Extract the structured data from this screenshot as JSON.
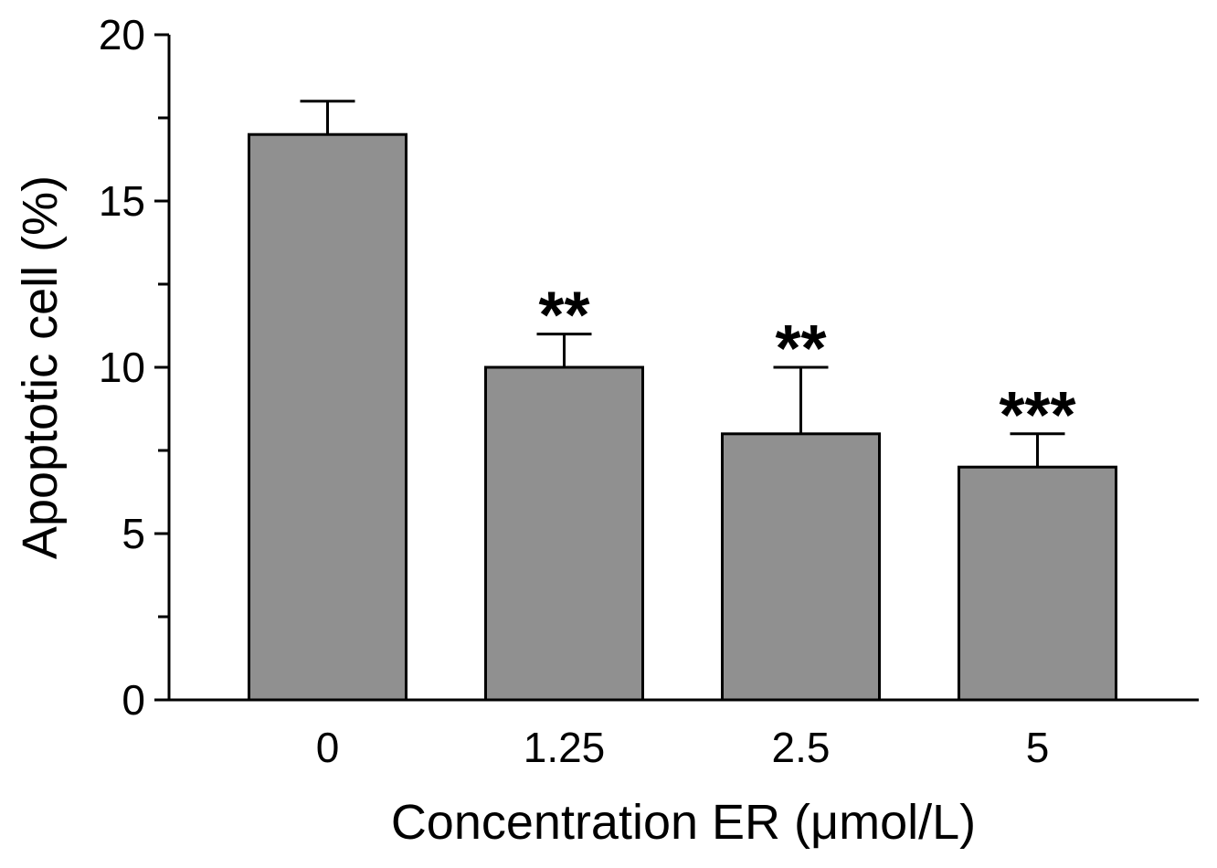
{
  "chart_data": {
    "type": "bar",
    "title": "",
    "xlabel": "Concentration ER (μmol/L)",
    "ylabel": "Apoptotic cell (%)",
    "categories": [
      "0",
      "1.25",
      "2.5",
      "5"
    ],
    "values": [
      17,
      10,
      8,
      7
    ],
    "errors": [
      1,
      1,
      2,
      1
    ],
    "significance": [
      "",
      "**",
      "**",
      "***"
    ],
    "ylim": [
      0,
      20
    ],
    "yticks": [
      0,
      5,
      10,
      15,
      20
    ],
    "yticks_minor": [
      2.5,
      7.5,
      12.5,
      17.5
    ],
    "ytick_labels": [
      "0",
      "5",
      "10",
      "15",
      "20"
    ],
    "grid": false,
    "bar_color": "#909090",
    "edge_color": "#000000"
  }
}
